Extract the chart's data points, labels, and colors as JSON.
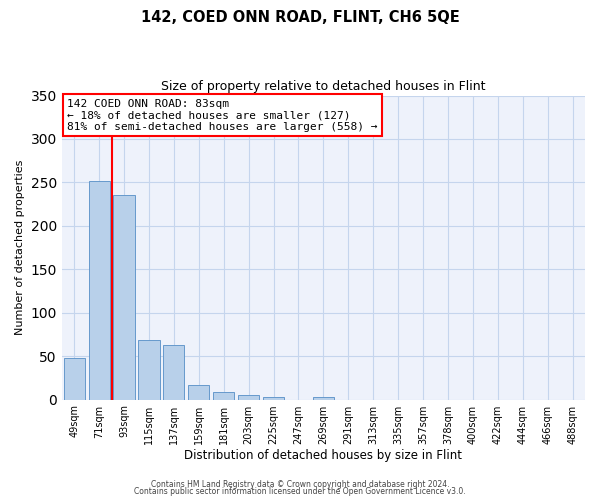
{
  "title": "142, COED ONN ROAD, FLINT, CH6 5QE",
  "subtitle": "Size of property relative to detached houses in Flint",
  "xlabel": "Distribution of detached houses by size in Flint",
  "ylabel": "Number of detached properties",
  "bar_labels": [
    "49sqm",
    "71sqm",
    "93sqm",
    "115sqm",
    "137sqm",
    "159sqm",
    "181sqm",
    "203sqm",
    "225sqm",
    "247sqm",
    "269sqm",
    "291sqm",
    "313sqm",
    "335sqm",
    "357sqm",
    "378sqm",
    "400sqm",
    "422sqm",
    "444sqm",
    "466sqm",
    "488sqm"
  ],
  "bar_values": [
    48,
    252,
    236,
    69,
    63,
    17,
    9,
    5,
    3,
    0,
    3,
    0,
    0,
    0,
    0,
    0,
    0,
    0,
    0,
    0,
    0
  ],
  "bar_color": "#b8d0ea",
  "bar_edge_color": "#6699cc",
  "background_color": "#eef2fb",
  "grid_color": "#c5d5ed",
  "red_line_x": 1.5,
  "ylim": [
    0,
    350
  ],
  "yticks": [
    0,
    50,
    100,
    150,
    200,
    250,
    300,
    350
  ],
  "annotation_title": "142 COED ONN ROAD: 83sqm",
  "annotation_line1": "← 18% of detached houses are smaller (127)",
  "annotation_line2": "81% of semi-detached houses are larger (558) →",
  "footer1": "Contains HM Land Registry data © Crown copyright and database right 2024.",
  "footer2": "Contains public sector information licensed under the Open Government Licence v3.0."
}
